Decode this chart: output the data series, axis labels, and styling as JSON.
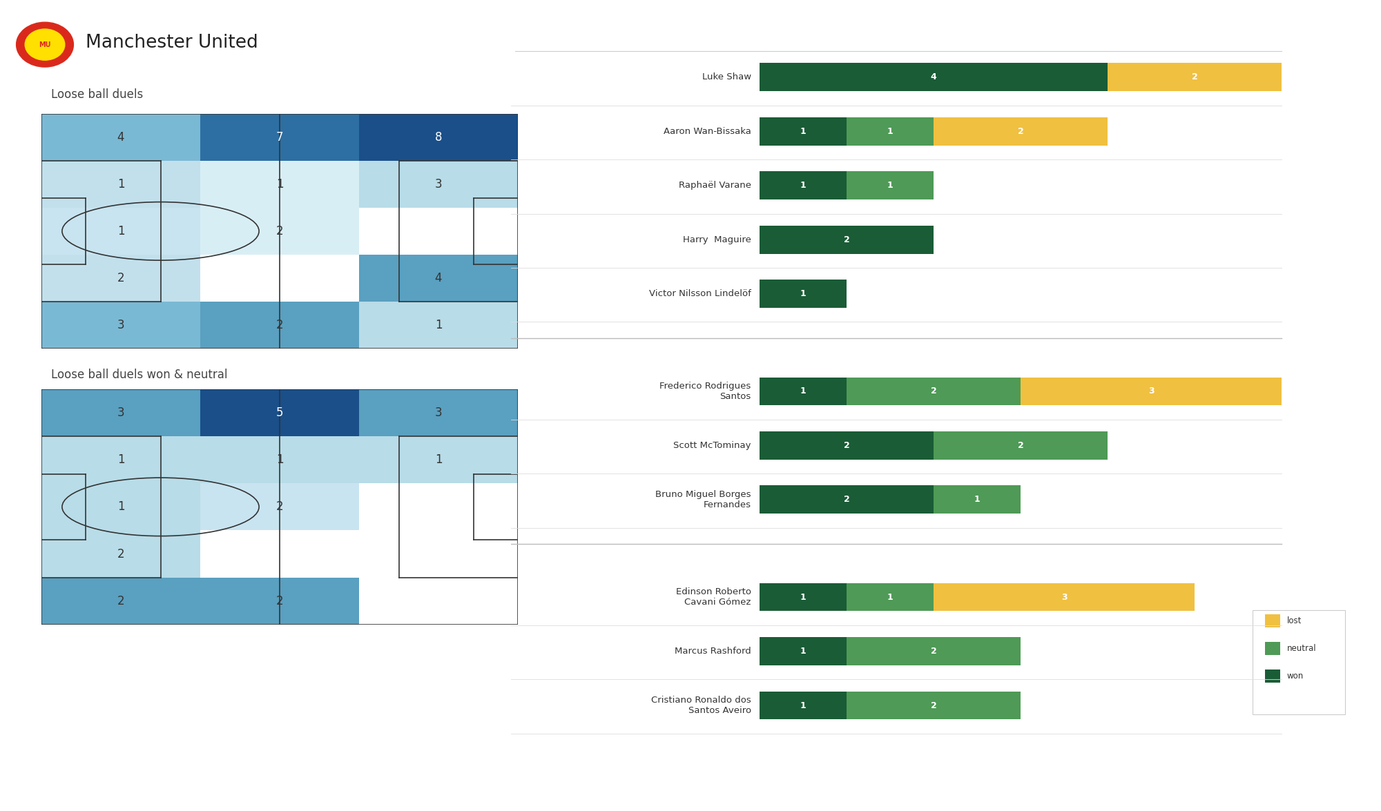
{
  "title": "Manchester United",
  "subtitle1": "Loose ball duels",
  "subtitle2": "Loose ball duels won & neutral",
  "heatmap1_grid": [
    [
      4,
      7,
      8
    ],
    [
      1,
      1,
      3
    ],
    [
      1,
      2,
      0
    ],
    [
      2,
      0,
      4
    ],
    [
      3,
      2,
      1
    ]
  ],
  "heatmap1_colors": [
    [
      "#7ab9d4",
      "#2d6fa3",
      "#1a4f8a"
    ],
    [
      "#c2e0ec",
      "#d8eef5",
      "#b8dce8"
    ],
    [
      "#c8e4f0",
      "#d8eef5",
      "#ffffff"
    ],
    [
      "#c2e0ec",
      "#ffffff",
      "#5aa0c0"
    ],
    [
      "#7ab9d4",
      "#5aa0c0",
      "#b8dce8"
    ]
  ],
  "heatmap2_grid": [
    [
      3,
      5,
      3
    ],
    [
      1,
      1,
      1
    ],
    [
      1,
      2,
      0
    ],
    [
      2,
      0,
      0
    ],
    [
      2,
      2,
      0
    ]
  ],
  "heatmap2_colors": [
    [
      "#5aa0c0",
      "#1a4f8a",
      "#5aa0c0"
    ],
    [
      "#b8dce8",
      "#b8dce8",
      "#b8dce8"
    ],
    [
      "#b8dce8",
      "#c8e4f0",
      "#ffffff"
    ],
    [
      "#b8dce8",
      "#ffffff",
      "#ffffff"
    ],
    [
      "#5aa0c0",
      "#5aa0c0",
      "#ffffff"
    ]
  ],
  "players": [
    "Luke Shaw",
    "Aaron Wan-Bissaka",
    "Raphaël Varane",
    "Harry  Maguire",
    "Victor Nilsson Lindelöf",
    "Frederico Rodrigues\nSantos",
    "Scott McTominay",
    "Bruno Miguel Borges\nFernandes",
    "Edinson Roberto\nCavani Gómez",
    "Marcus Rashford",
    "Cristiano Ronaldo dos\nSantos Aveiro"
  ],
  "bars": [
    {
      "won": 4,
      "neutral": 0,
      "lost": 2
    },
    {
      "won": 1,
      "neutral": 1,
      "lost": 2
    },
    {
      "won": 1,
      "neutral": 1,
      "lost": 0
    },
    {
      "won": 2,
      "neutral": 0,
      "lost": 0
    },
    {
      "won": 1,
      "neutral": 0,
      "lost": 0
    },
    {
      "won": 1,
      "neutral": 2,
      "lost": 3
    },
    {
      "won": 2,
      "neutral": 2,
      "lost": 0
    },
    {
      "won": 2,
      "neutral": 1,
      "lost": 0
    },
    {
      "won": 1,
      "neutral": 1,
      "lost": 3
    },
    {
      "won": 1,
      "neutral": 2,
      "lost": 0
    },
    {
      "won": 1,
      "neutral": 2,
      "lost": 0
    }
  ],
  "color_won": "#1a5c36",
  "color_neutral": "#4e9a56",
  "color_lost": "#f0c040",
  "bg_color": "#ffffff",
  "pitch_line_color": "#333333",
  "divider_after": [
    4,
    7
  ]
}
